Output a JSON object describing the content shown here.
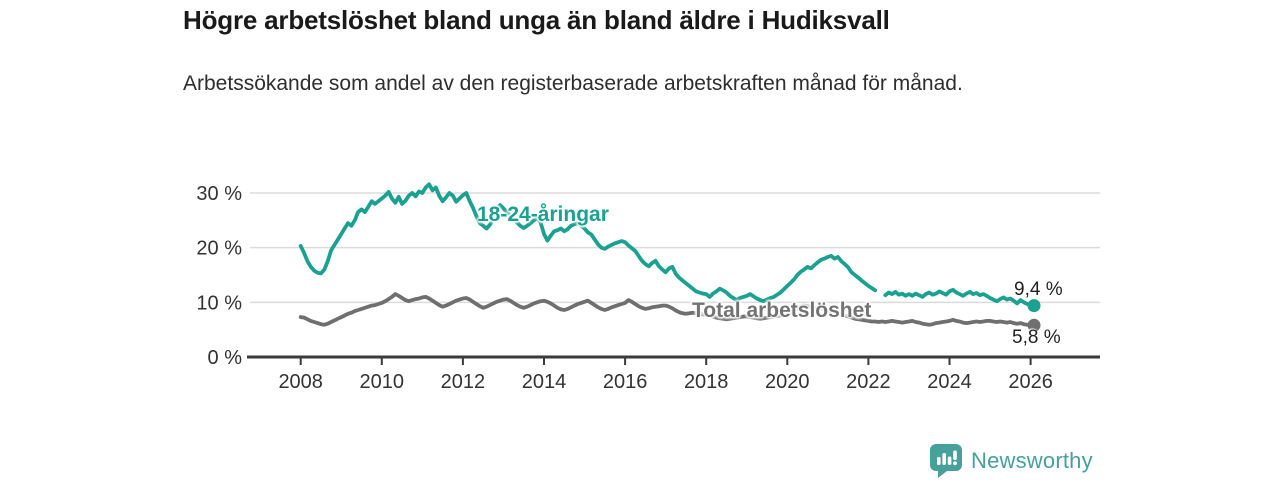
{
  "header": {
    "title": "Högre arbetslöshet bland unga än bland äldre i Hudiksvall",
    "subtitle": "Arbetssökande som andel av den registerbaserade arbetskraften månad för månad."
  },
  "annotations": {
    "series_young_label": "18-24-åringar",
    "series_total_label": "Total arbetslöshet",
    "series_young_end_value": "9,4 %",
    "series_total_end_value": "5,8 %"
  },
  "footer": {
    "brand": "Newsworthy",
    "logo_icon": "bar-chart-speech-bubble-icon"
  },
  "colors": {
    "young_line": "#1AA190",
    "total_line": "#6F6F6F",
    "total_label": "#737373",
    "grid": "#DBDBDB",
    "axis": "#3A3A3A",
    "tick_text": "#333333",
    "brand_teal": "#48A09A"
  },
  "chart_data": {
    "type": "line",
    "title": "Högre arbetslöshet bland unga än bland äldre i Hudiksvall",
    "subtitle": "Arbetssökande som andel av den registerbaserade arbetskraften månad för månad.",
    "x_start": "2008-01",
    "x_interval": "monthly",
    "x_ticks": [
      2008,
      2010,
      2012,
      2014,
      2016,
      2018,
      2020,
      2022,
      2024,
      2026
    ],
    "x_tick_labels": [
      "2008",
      "2010",
      "2012",
      "2014",
      "2016",
      "2018",
      "2020",
      "2022",
      "2024",
      "2026"
    ],
    "y_ticks": [
      0,
      10,
      20,
      30
    ],
    "y_tick_labels": [
      "0 %",
      "10 %",
      "20 %",
      "30 %"
    ],
    "ylim": [
      0,
      33
    ],
    "xlim_years": [
      2006.7,
      2027.7
    ],
    "grid": true,
    "legend_position": "inline-labels",
    "series": [
      {
        "name": "18-24-åringar",
        "color": "#1AA190",
        "end_value": 9.4,
        "end_label": "9,4 %",
        "values": [
          20.3,
          19.0,
          17.5,
          16.5,
          15.8,
          15.4,
          15.3,
          16.0,
          17.5,
          19.5,
          20.5,
          21.5,
          22.5,
          23.5,
          24.5,
          24.0,
          25.0,
          26.5,
          27.0,
          26.5,
          27.5,
          28.5,
          28.0,
          28.5,
          29.0,
          29.5,
          30.2,
          29.0,
          28.2,
          29.3,
          28.0,
          28.6,
          29.5,
          30.0,
          29.4,
          30.3,
          30.0,
          31.0,
          31.6,
          30.5,
          31.0,
          29.5,
          28.5,
          29.2,
          30.0,
          29.5,
          28.4,
          29.0,
          29.6,
          30.0,
          28.5,
          27.3,
          25.8,
          24.5,
          24.0,
          23.5,
          24.2,
          25.2,
          27.0,
          27.8,
          27.2,
          26.5,
          26.0,
          25.2,
          24.6,
          24.0,
          23.6,
          24.0,
          24.5,
          25.0,
          25.4,
          24.6,
          22.5,
          21.3,
          22.2,
          23.0,
          23.2,
          23.5,
          23.0,
          23.4,
          24.0,
          24.3,
          24.5,
          24.0,
          23.5,
          22.8,
          22.4,
          21.5,
          20.6,
          20.0,
          19.8,
          20.2,
          20.5,
          20.8,
          21.0,
          21.2,
          21.0,
          20.4,
          19.9,
          19.4,
          18.5,
          17.6,
          17.0,
          16.6,
          17.2,
          17.6,
          16.6,
          16.0,
          15.5,
          16.2,
          16.5,
          15.2,
          14.5,
          14.0,
          13.5,
          13.0,
          12.5,
          12.0,
          11.8,
          11.6,
          11.5,
          11.0,
          11.6,
          12.0,
          12.5,
          12.2,
          11.8,
          11.2,
          10.8,
          10.4,
          10.8,
          11.0,
          11.2,
          11.5,
          11.1,
          10.7,
          10.4,
          10.2,
          10.5,
          10.8,
          11.0,
          11.4,
          11.8,
          12.4,
          13.0,
          13.6,
          14.2,
          15.0,
          15.6,
          16.0,
          16.5,
          16.2,
          16.8,
          17.3,
          17.8,
          18.0,
          18.3,
          18.5,
          18.0,
          18.3,
          17.5,
          17.0,
          16.4,
          15.5,
          15.0,
          14.5,
          14.0,
          13.5,
          13.0,
          12.6,
          12.2,
          null,
          null,
          11.3,
          11.8,
          11.5,
          11.9,
          11.4,
          11.6,
          11.2,
          11.5,
          11.2,
          11.6,
          11.3,
          11.0,
          11.5,
          11.8,
          11.4,
          11.6,
          12.0,
          11.7,
          11.4,
          12.0,
          12.3,
          11.8,
          11.5,
          11.2,
          11.6,
          11.9,
          11.5,
          11.7,
          11.3,
          11.5,
          11.2,
          10.8,
          10.5,
          10.2,
          10.6,
          10.9,
          10.5,
          10.7,
          10.3,
          9.8,
          10.4,
          10.0,
          9.7,
          9.5,
          9.4
        ]
      },
      {
        "name": "Total arbetslöshet",
        "color": "#6F6F6F",
        "end_value": 5.8,
        "end_label": "5,8 %",
        "values": [
          7.3,
          7.2,
          6.9,
          6.6,
          6.4,
          6.2,
          6.0,
          5.9,
          6.1,
          6.4,
          6.7,
          7.0,
          7.3,
          7.6,
          7.9,
          8.1,
          8.4,
          8.6,
          8.8,
          9.0,
          9.2,
          9.4,
          9.5,
          9.7,
          9.9,
          10.2,
          10.6,
          11.0,
          11.5,
          11.2,
          10.8,
          10.4,
          10.2,
          10.4,
          10.6,
          10.7,
          10.9,
          11.0,
          10.7,
          10.3,
          9.9,
          9.5,
          9.2,
          9.4,
          9.7,
          10.0,
          10.3,
          10.5,
          10.7,
          10.8,
          10.5,
          10.1,
          9.7,
          9.3,
          9.0,
          9.2,
          9.5,
          9.8,
          10.1,
          10.3,
          10.5,
          10.6,
          10.3,
          9.9,
          9.5,
          9.2,
          9.0,
          9.2,
          9.5,
          9.8,
          10.0,
          10.2,
          10.3,
          10.1,
          9.8,
          9.4,
          9.0,
          8.7,
          8.6,
          8.8,
          9.1,
          9.4,
          9.7,
          9.9,
          10.1,
          10.3,
          9.9,
          9.5,
          9.1,
          8.8,
          8.6,
          8.8,
          9.1,
          9.3,
          9.5,
          9.7,
          9.9,
          10.4,
          10.1,
          9.7,
          9.3,
          9.0,
          8.8,
          8.9,
          9.1,
          9.2,
          9.3,
          9.4,
          9.4,
          9.2,
          8.9,
          8.5,
          8.2,
          8.0,
          7.9,
          8.0,
          8.1,
          8.0,
          7.9,
          7.8,
          7.7,
          7.6,
          7.4,
          7.2,
          7.1,
          7.0,
          6.9,
          7.0,
          7.1,
          7.2,
          7.3,
          7.4,
          7.4,
          7.3,
          7.2,
          7.1,
          7.0,
          7.1,
          7.2,
          7.3,
          7.4,
          7.5,
          7.6,
          7.8,
          8.0,
          8.2,
          8.5,
          8.9,
          9.2,
          9.4,
          9.3,
          9.2,
          9.0,
          8.9,
          8.8,
          8.7,
          8.5,
          8.4,
          8.2,
          8.0,
          7.8,
          7.6,
          7.4,
          7.2,
          7.0,
          6.9,
          6.8,
          6.7,
          6.6,
          6.5,
          6.5,
          6.4,
          6.5,
          6.4,
          6.5,
          6.6,
          6.5,
          6.4,
          6.3,
          6.4,
          6.5,
          6.6,
          6.4,
          6.3,
          6.1,
          6.0,
          5.9,
          6.0,
          6.2,
          6.3,
          6.4,
          6.5,
          6.6,
          6.8,
          6.6,
          6.5,
          6.3,
          6.2,
          6.3,
          6.4,
          6.5,
          6.4,
          6.5,
          6.6,
          6.6,
          6.5,
          6.4,
          6.5,
          6.4,
          6.3,
          6.4,
          6.2,
          6.1,
          6.2,
          6.0,
          5.9,
          5.9,
          5.8
        ]
      }
    ]
  }
}
